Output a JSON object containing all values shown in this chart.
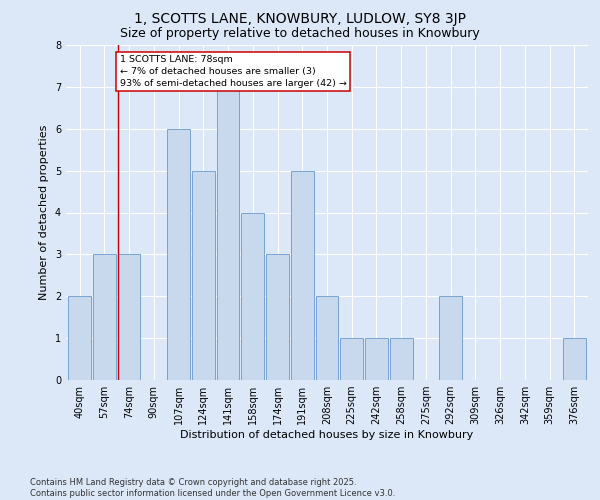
{
  "title": "1, SCOTTS LANE, KNOWBURY, LUDLOW, SY8 3JP",
  "subtitle": "Size of property relative to detached houses in Knowbury",
  "xlabel": "Distribution of detached houses by size in Knowbury",
  "ylabel": "Number of detached properties",
  "categories": [
    "40sqm",
    "57sqm",
    "74sqm",
    "90sqm",
    "107sqm",
    "124sqm",
    "141sqm",
    "158sqm",
    "174sqm",
    "191sqm",
    "208sqm",
    "225sqm",
    "242sqm",
    "258sqm",
    "275sqm",
    "292sqm",
    "309sqm",
    "326sqm",
    "342sqm",
    "359sqm",
    "376sqm"
  ],
  "values": [
    2,
    3,
    3,
    0,
    6,
    5,
    7,
    4,
    3,
    5,
    2,
    1,
    1,
    1,
    0,
    2,
    0,
    0,
    0,
    0,
    1
  ],
  "bar_color": "#c8d9ee",
  "bar_edge_color": "#6699cc",
  "red_line_index": 2,
  "annotation_text": "1 SCOTTS LANE: 78sqm\n← 7% of detached houses are smaller (3)\n93% of semi-detached houses are larger (42) →",
  "annotation_box_color": "#ffffff",
  "annotation_box_edge": "#cc0000",
  "ylim": [
    0,
    8
  ],
  "yticks": [
    0,
    1,
    2,
    3,
    4,
    5,
    6,
    7,
    8
  ],
  "background_color": "#dce8f8",
  "grid_color": "#ffffff",
  "footer_line1": "Contains HM Land Registry data © Crown copyright and database right 2025.",
  "footer_line2": "Contains public sector information licensed under the Open Government Licence v3.0.",
  "title_fontsize": 10,
  "subtitle_fontsize": 9,
  "axis_label_fontsize": 8,
  "tick_fontsize": 7,
  "footer_fontsize": 6
}
